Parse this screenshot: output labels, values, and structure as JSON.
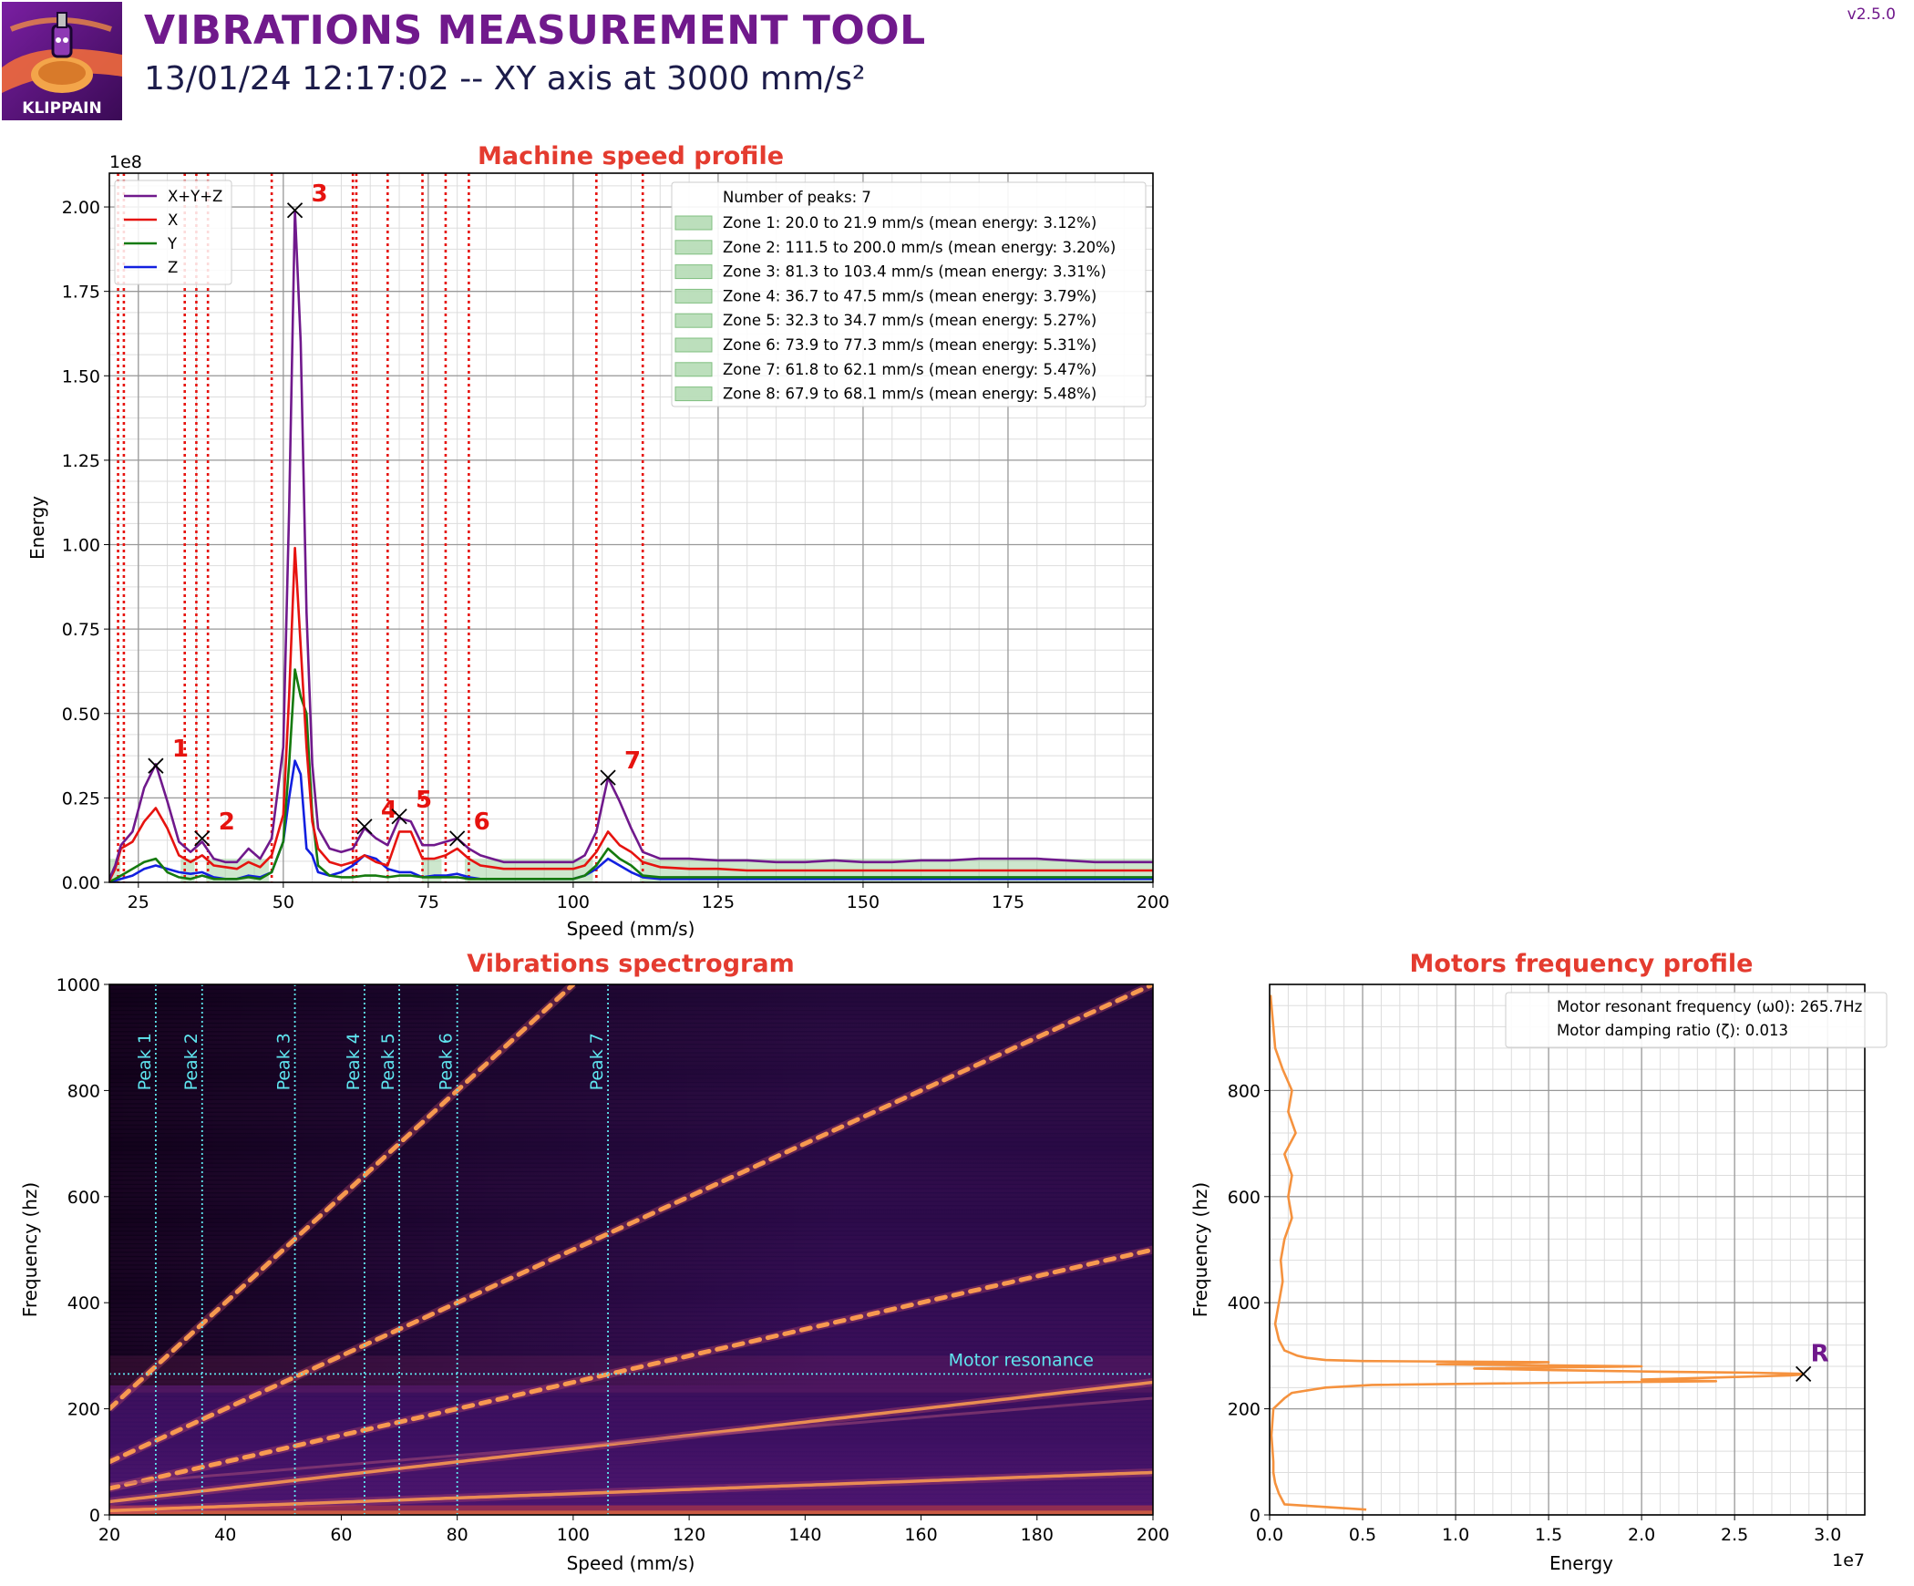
{
  "header": {
    "logo_text": "KLIPPAIN",
    "title": "VIBRATIONS MEASUREMENT TOOL",
    "subtitle": "13/01/24 12:17:02 -- XY axis at 3000 mm/s²",
    "version": "v2.5.0"
  },
  "colors": {
    "title_purple": "#70198c",
    "chart_title_red": "#e43b2f",
    "sum": "#70198c",
    "x": "#e6130f",
    "y": "#157a0e",
    "z": "#1220e0",
    "peak_line": "#e6130f",
    "zone_fill": "#90c990",
    "motor_curve": "#f5923e",
    "cyan": "#5fe6f0"
  },
  "chart_data": [
    {
      "type": "line",
      "title": "Machine speed profile",
      "xlabel": "Speed (mm/s)",
      "ylabel": "Energy",
      "y_multiplier": "1e8",
      "xlim": [
        20,
        200
      ],
      "ylim": [
        0,
        2.1
      ],
      "xticks": [
        25,
        50,
        75,
        100,
        125,
        150,
        175,
        200
      ],
      "yticks": [
        "0.00",
        "0.25",
        "0.50",
        "0.75",
        "1.00",
        "1.25",
        "1.50",
        "1.75",
        "2.00"
      ],
      "grid": true,
      "legend_position": "top-left",
      "x": [
        20,
        21,
        22,
        24,
        26,
        28,
        30,
        32,
        34,
        36,
        38,
        40,
        42,
        44,
        46,
        48,
        50,
        51,
        52,
        53,
        54,
        55,
        56,
        58,
        60,
        62,
        64,
        66,
        68,
        70,
        72,
        74,
        76,
        78,
        80,
        82,
        84,
        86,
        88,
        90,
        92,
        94,
        96,
        98,
        100,
        102,
        104,
        106,
        108,
        110,
        112,
        115,
        120,
        125,
        130,
        135,
        140,
        145,
        150,
        155,
        160,
        165,
        170,
        175,
        180,
        185,
        190,
        195,
        200
      ],
      "series": [
        {
          "name": "X+Y+Z",
          "key": "sum",
          "values": [
            0.01,
            0.05,
            0.11,
            0.15,
            0.28,
            0.35,
            0.24,
            0.12,
            0.09,
            0.12,
            0.07,
            0.06,
            0.06,
            0.1,
            0.07,
            0.13,
            0.4,
            1.1,
            1.99,
            1.6,
            0.8,
            0.35,
            0.16,
            0.1,
            0.09,
            0.1,
            0.16,
            0.13,
            0.11,
            0.19,
            0.18,
            0.11,
            0.11,
            0.12,
            0.13,
            0.1,
            0.08,
            0.07,
            0.06,
            0.06,
            0.06,
            0.06,
            0.06,
            0.06,
            0.06,
            0.08,
            0.15,
            0.31,
            0.24,
            0.16,
            0.09,
            0.07,
            0.07,
            0.065,
            0.065,
            0.06,
            0.06,
            0.065,
            0.06,
            0.06,
            0.065,
            0.065,
            0.07,
            0.07,
            0.07,
            0.065,
            0.06,
            0.06,
            0.06
          ]
        },
        {
          "name": "X",
          "key": "x",
          "values": [
            0.005,
            0.04,
            0.1,
            0.12,
            0.18,
            0.22,
            0.16,
            0.08,
            0.06,
            0.08,
            0.05,
            0.045,
            0.04,
            0.06,
            0.045,
            0.08,
            0.2,
            0.55,
            0.99,
            0.7,
            0.4,
            0.18,
            0.1,
            0.06,
            0.05,
            0.06,
            0.08,
            0.06,
            0.05,
            0.15,
            0.15,
            0.07,
            0.07,
            0.08,
            0.1,
            0.07,
            0.05,
            0.045,
            0.04,
            0.04,
            0.04,
            0.04,
            0.04,
            0.04,
            0.04,
            0.05,
            0.09,
            0.15,
            0.11,
            0.09,
            0.06,
            0.045,
            0.04,
            0.04,
            0.035,
            0.035,
            0.035,
            0.035,
            0.035,
            0.035,
            0.035,
            0.035,
            0.035,
            0.035,
            0.035,
            0.035,
            0.035,
            0.035,
            0.035
          ]
        },
        {
          "name": "Y",
          "key": "y",
          "values": [
            0.002,
            0.01,
            0.02,
            0.04,
            0.06,
            0.07,
            0.03,
            0.015,
            0.01,
            0.02,
            0.01,
            0.01,
            0.01,
            0.015,
            0.01,
            0.03,
            0.12,
            0.35,
            0.63,
            0.55,
            0.5,
            0.2,
            0.05,
            0.02,
            0.015,
            0.015,
            0.02,
            0.02,
            0.015,
            0.02,
            0.02,
            0.015,
            0.015,
            0.015,
            0.015,
            0.01,
            0.01,
            0.01,
            0.01,
            0.01,
            0.01,
            0.01,
            0.01,
            0.01,
            0.01,
            0.02,
            0.05,
            0.1,
            0.07,
            0.05,
            0.02,
            0.015,
            0.015,
            0.015,
            0.015,
            0.015,
            0.015,
            0.015,
            0.015,
            0.015,
            0.015,
            0.015,
            0.015,
            0.015,
            0.015,
            0.015,
            0.015,
            0.015,
            0.015
          ]
        },
        {
          "name": "Z",
          "key": "z",
          "values": [
            0.001,
            0.005,
            0.01,
            0.02,
            0.04,
            0.05,
            0.04,
            0.03,
            0.025,
            0.03,
            0.015,
            0.01,
            0.01,
            0.02,
            0.015,
            0.03,
            0.12,
            0.25,
            0.36,
            0.32,
            0.1,
            0.08,
            0.03,
            0.02,
            0.03,
            0.05,
            0.08,
            0.07,
            0.04,
            0.03,
            0.03,
            0.015,
            0.02,
            0.02,
            0.025,
            0.015,
            0.01,
            0.01,
            0.01,
            0.01,
            0.01,
            0.01,
            0.01,
            0.01,
            0.01,
            0.02,
            0.04,
            0.07,
            0.05,
            0.03,
            0.015,
            0.01,
            0.01,
            0.01,
            0.01,
            0.01,
            0.01,
            0.01,
            0.01,
            0.01,
            0.01,
            0.01,
            0.01,
            0.01,
            0.01,
            0.01,
            0.01,
            0.01,
            0.01
          ]
        }
      ],
      "peak_lines_x": [
        21.5,
        22.5,
        33,
        35,
        37,
        48,
        62,
        62.6,
        68,
        74,
        78,
        82,
        104,
        112
      ],
      "zones": [
        [
          20.0,
          21.9
        ],
        [
          111.5,
          200.0
        ],
        [
          81.3,
          103.4
        ],
        [
          36.7,
          47.5
        ],
        [
          32.3,
          34.7
        ],
        [
          73.9,
          77.3
        ],
        [
          61.8,
          62.1
        ],
        [
          67.9,
          68.1
        ]
      ],
      "peaks": [
        {
          "label": "1",
          "x": 28,
          "y": 0.345
        },
        {
          "label": "2",
          "x": 36,
          "y": 0.13
        },
        {
          "label": "3",
          "x": 52,
          "y": 1.99
        },
        {
          "label": "4",
          "x": 64,
          "y": 0.165
        },
        {
          "label": "5",
          "x": 70,
          "y": 0.195
        },
        {
          "label": "6",
          "x": 80,
          "y": 0.13
        },
        {
          "label": "7",
          "x": 106,
          "y": 0.31
        }
      ],
      "legend2": {
        "header": "Number of peaks: 7",
        "entries": [
          "Zone 1: 20.0 to 21.9 mm/s (mean energy: 3.12%)",
          "Zone 2: 111.5 to 200.0 mm/s (mean energy: 3.20%)",
          "Zone 3: 81.3 to 103.4 mm/s (mean energy: 3.31%)",
          "Zone 4: 36.7 to 47.5 mm/s (mean energy: 3.79%)",
          "Zone 5: 32.3 to 34.7 mm/s (mean energy: 5.27%)",
          "Zone 6: 73.9 to 77.3 mm/s (mean energy: 5.31%)",
          "Zone 7: 61.8 to 62.1 mm/s (mean energy: 5.47%)",
          "Zone 8: 67.9 to 68.1 mm/s (mean energy: 5.48%)"
        ]
      }
    },
    {
      "type": "heatmap",
      "title": "Vibrations spectrogram",
      "xlabel": "Speed (mm/s)",
      "ylabel": "Frequency (hz)",
      "xlim": [
        20,
        200
      ],
      "ylim": [
        0,
        1000
      ],
      "xticks": [
        20,
        40,
        60,
        80,
        100,
        120,
        140,
        160,
        180,
        200
      ],
      "yticks": [
        0,
        200,
        400,
        600,
        800,
        1000
      ],
      "peak_lines": [
        {
          "label": "Peak 1",
          "x": 28
        },
        {
          "label": "Peak 2",
          "x": 36
        },
        {
          "label": "Peak 3",
          "x": 52
        },
        {
          "label": "Peak 4",
          "x": 64
        },
        {
          "label": "Peak 5",
          "x": 70
        },
        {
          "label": "Peak 6",
          "x": 80
        },
        {
          "label": "Peak 7",
          "x": 106
        }
      ],
      "motor_resonance": {
        "label": "Motor resonance",
        "y": 265.7
      },
      "bands_hz_per_mm_s": [
        10,
        5,
        2.5,
        1.25,
        0.4
      ]
    },
    {
      "type": "line",
      "title": "Motors frequency profile",
      "xlabel": "Energy",
      "ylabel": "Frequency (hz)",
      "x_multiplier": "1e7",
      "xlim": [
        0,
        3.2
      ],
      "ylim": [
        0,
        1000
      ],
      "xticks": [
        "0.0",
        "0.5",
        "1.0",
        "1.5",
        "2.0",
        "2.5",
        "3.0"
      ],
      "yticks": [
        0,
        200,
        400,
        600,
        800
      ],
      "freq": [
        10,
        20,
        40,
        60,
        80,
        100,
        150,
        200,
        220,
        230,
        240,
        245,
        250,
        252,
        255,
        260,
        263,
        265,
        266,
        268,
        270,
        273,
        276,
        280,
        284,
        288,
        290,
        292,
        296,
        300,
        310,
        330,
        360,
        400,
        440,
        480,
        520,
        560,
        600,
        640,
        680,
        720,
        760,
        800,
        840,
        880,
        920,
        960,
        980
      ],
      "energy": [
        0.52,
        0.08,
        0.05,
        0.03,
        0.02,
        0.02,
        0.01,
        0.02,
        0.08,
        0.12,
        0.3,
        0.55,
        1.8,
        2.4,
        2.0,
        2.5,
        2.8,
        2.87,
        2.85,
        2.6,
        2.1,
        1.5,
        1.1,
        2.0,
        0.9,
        1.5,
        0.5,
        0.3,
        0.2,
        0.15,
        0.08,
        0.05,
        0.03,
        0.05,
        0.07,
        0.06,
        0.08,
        0.12,
        0.1,
        0.12,
        0.08,
        0.14,
        0.1,
        0.12,
        0.07,
        0.03,
        0.02,
        0.01,
        0.005
      ],
      "resonance_marker": {
        "label": "R",
        "x": 2.87,
        "y": 265.7
      },
      "legend": [
        "Motor resonant frequency (ω0): 265.7Hz",
        "Motor damping ratio (ζ): 0.013"
      ]
    }
  ]
}
